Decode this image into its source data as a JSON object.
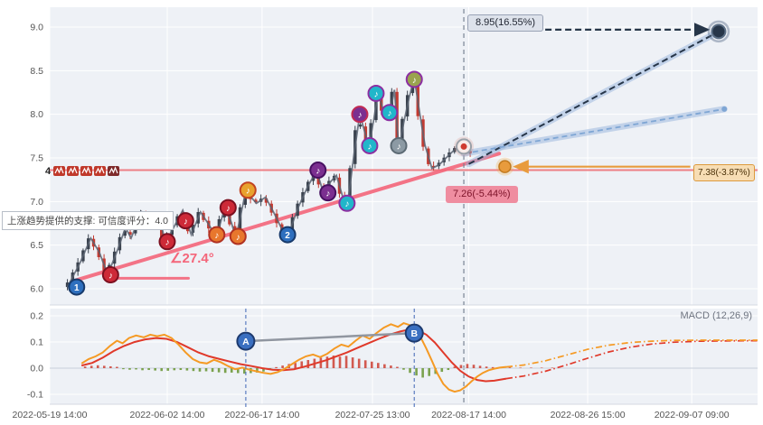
{
  "colors": {
    "panel_bg": "#eef1f6",
    "grid": "#ffffff",
    "axis_line": "#d4d9e1",
    "axis_text": "#555555",
    "candle_up": "#39414d",
    "candle_down": "#c23a31",
    "price_path": "#5a6472",
    "support_line": "#f4667a",
    "level_line": "#ed6a72",
    "projection_dark": "#273649",
    "projection_blue": "#7fa6d4",
    "glow_blue": "rgba(150,180,220,0.5)",
    "arrow_orange": "#e89b3d",
    "now_line": "#7a8494",
    "macd_dif": "#f59a24",
    "macd_dea": "#e0392a",
    "hist_pos": "#cf4a3f",
    "hist_neg": "#6f9a3c",
    "ab_line": "#9096a0",
    "ab_circle": "#3a6fc0",
    "ab_ring": "#1d3a6e"
  },
  "chart_data": {
    "type": "candlestick+macd",
    "now_f": 0.585,
    "x_axis": {
      "ticks": [
        {
          "f": 0.0,
          "label": "2022-05-19 14:00"
        },
        {
          "f": 0.166,
          "label": "2022-06-02 14:00"
        },
        {
          "f": 0.3,
          "label": "2022-06-17 14:00"
        },
        {
          "f": 0.456,
          "label": "2022-07-25 13:00"
        },
        {
          "f": 0.592,
          "label": "2022-08-17 14:00"
        },
        {
          "f": 0.76,
          "label": "2022-08-26 15:00"
        },
        {
          "f": 0.907,
          "label": "2022-09-07 09:00"
        }
      ]
    },
    "price_panel": {
      "y_ticks": [
        6.0,
        6.5,
        7.0,
        7.5,
        8.0,
        8.5,
        9.0
      ],
      "level_line": 7.36,
      "candle_count": 78,
      "candle_range": [
        0.025,
        0.594
      ],
      "price_path": [
        [
          0.025,
          6.02
        ],
        [
          0.043,
          6.3
        ],
        [
          0.058,
          6.58
        ],
        [
          0.07,
          6.42
        ],
        [
          0.082,
          6.16
        ],
        [
          0.096,
          6.45
        ],
        [
          0.107,
          6.7
        ],
        [
          0.115,
          6.58
        ],
        [
          0.13,
          6.88
        ],
        [
          0.145,
          6.7
        ],
        [
          0.155,
          6.85
        ],
        [
          0.163,
          6.52
        ],
        [
          0.175,
          6.7
        ],
        [
          0.188,
          6.9
        ],
        [
          0.2,
          6.62
        ],
        [
          0.213,
          6.88
        ],
        [
          0.226,
          6.72
        ],
        [
          0.235,
          6.58
        ],
        [
          0.248,
          6.95
        ],
        [
          0.257,
          6.75
        ],
        [
          0.263,
          6.58
        ],
        [
          0.277,
          7.12
        ],
        [
          0.292,
          6.98
        ],
        [
          0.305,
          7.05
        ],
        [
          0.318,
          6.85
        ],
        [
          0.33,
          6.65
        ],
        [
          0.337,
          6.62
        ],
        [
          0.352,
          6.95
        ],
        [
          0.365,
          7.18
        ],
        [
          0.377,
          7.35
        ],
        [
          0.386,
          7.12
        ],
        [
          0.396,
          7.22
        ],
        [
          0.405,
          7.3
        ],
        [
          0.414,
          7.05
        ],
        [
          0.421,
          6.98
        ],
        [
          0.43,
          7.55
        ],
        [
          0.438,
          8.0
        ],
        [
          0.445,
          7.8
        ],
        [
          0.451,
          7.62
        ],
        [
          0.458,
          7.95
        ],
        [
          0.464,
          8.24
        ],
        [
          0.471,
          8.05
        ],
        [
          0.477,
          7.98
        ],
        [
          0.481,
          8.02
        ],
        [
          0.487,
          8.28
        ],
        [
          0.492,
          7.75
        ],
        [
          0.494,
          7.62
        ],
        [
          0.5,
          7.9
        ],
        [
          0.508,
          8.2
        ],
        [
          0.515,
          8.42
        ],
        [
          0.522,
          8.05
        ],
        [
          0.53,
          7.65
        ],
        [
          0.54,
          7.38
        ],
        [
          0.55,
          7.42
        ],
        [
          0.56,
          7.5
        ],
        [
          0.57,
          7.58
        ],
        [
          0.578,
          7.63
        ],
        [
          0.585,
          7.63
        ],
        [
          0.594,
          7.55
        ]
      ],
      "support_line": {
        "x1": 0.038,
        "y1": 6.1,
        "x2": 0.635,
        "y2": 7.55
      },
      "angle_guide": {
        "text": "∠27.4°",
        "x1": 0.082,
        "x2": 0.196,
        "y": 6.12,
        "label_x": 0.17,
        "label_y": 6.3
      },
      "marker_glyph": "♪",
      "markers": [
        {
          "x": 0.038,
          "p": 6.02,
          "label": "1",
          "fill": "#2e6fbe",
          "ring": "#173a6b"
        },
        {
          "x": 0.086,
          "p": 6.16,
          "fill": "#cd2a38",
          "ring": "#7c1020"
        },
        {
          "x": 0.166,
          "p": 6.54,
          "fill": "#cd2a38",
          "ring": "#7c1020"
        },
        {
          "x": 0.192,
          "p": 6.78,
          "fill": "#cd2a38",
          "ring": "#7c1020"
        },
        {
          "x": 0.236,
          "p": 6.62,
          "fill": "#e8772d",
          "ring": "#b03222"
        },
        {
          "x": 0.252,
          "p": 6.93,
          "fill": "#cd2a38",
          "ring": "#7c1020"
        },
        {
          "x": 0.266,
          "p": 6.6,
          "fill": "#e8772d",
          "ring": "#b03222"
        },
        {
          "x": 0.28,
          "p": 7.13,
          "fill": "#e8a22d",
          "ring": "#c24320"
        },
        {
          "x": 0.336,
          "p": 6.62,
          "label": "2",
          "fill": "#2e6fbe",
          "ring": "#173a6b"
        },
        {
          "x": 0.379,
          "p": 7.36,
          "fill": "#7b2f90",
          "ring": "#471061"
        },
        {
          "x": 0.393,
          "p": 7.1,
          "fill": "#7b2f90",
          "ring": "#471061"
        },
        {
          "x": 0.42,
          "p": 6.98,
          "fill": "#21b6ca",
          "ring": "#8c2fa1"
        },
        {
          "x": 0.438,
          "p": 8.0,
          "fill": "#7b2f90",
          "ring": "#c22a52"
        },
        {
          "x": 0.452,
          "p": 7.64,
          "fill": "#21b6ca",
          "ring": "#8c2fa1"
        },
        {
          "x": 0.461,
          "p": 8.24,
          "fill": "#21b6ca",
          "ring": "#8c2fa1"
        },
        {
          "x": 0.48,
          "p": 8.02,
          "fill": "#21b6ca",
          "ring": "#8c2fa1"
        },
        {
          "x": 0.493,
          "p": 7.64,
          "fill": "#8c9aa4",
          "ring": "#5c6a74"
        },
        {
          "x": 0.515,
          "p": 8.4,
          "fill": "#9aa34e",
          "ring": "#8c2fa1"
        }
      ],
      "projections": {
        "upper": {
          "x1": 0.592,
          "y1": 7.43,
          "x2": 0.941,
          "y2": 8.93
        },
        "lower": {
          "x1": 0.585,
          "y1": 7.55,
          "x2": 0.953,
          "y2": 8.06
        },
        "target_arrow": {
          "x1": 0.7,
          "x2": 0.93,
          "price": 8.97
        },
        "orange_arrow": {
          "x1": 0.905,
          "x2": 0.657,
          "price": 7.4
        }
      },
      "points": {
        "current": {
          "x": 0.585,
          "p": 7.63
        },
        "orange": {
          "x": 0.643,
          "p": 7.4
        },
        "end_up": {
          "x": 0.945,
          "p": 8.95
        },
        "end_mid": {
          "x": 0.953,
          "p": 8.06
        }
      },
      "annotations": {
        "up": {
          "text": "8.95(16.55%)"
        },
        "mid": {
          "text": "7.38(-3.87%)"
        },
        "down": {
          "text": "7.26(-5.44%)"
        }
      },
      "tooltip": "上涨趋势提供的支撑: 可信度评分：4.0",
      "left_signals": {
        "count_label": "4",
        "icon_colors": [
          "#c0392b",
          "#c0392b",
          "#c0392b",
          "#c0392b",
          "#7e2a2a"
        ]
      }
    },
    "macd_panel": {
      "label": "MACD (12,26,9)",
      "y_ticks": [
        0.2,
        0.1,
        0.0,
        -0.1
      ],
      "dif": [
        [
          0.045,
          0.018
        ],
        [
          0.055,
          0.035
        ],
        [
          0.065,
          0.045
        ],
        [
          0.075,
          0.06
        ],
        [
          0.085,
          0.085
        ],
        [
          0.095,
          0.105
        ],
        [
          0.103,
          0.095
        ],
        [
          0.112,
          0.115
        ],
        [
          0.122,
          0.125
        ],
        [
          0.133,
          0.118
        ],
        [
          0.142,
          0.128
        ],
        [
          0.152,
          0.122
        ],
        [
          0.162,
          0.128
        ],
        [
          0.172,
          0.115
        ],
        [
          0.182,
          0.09
        ],
        [
          0.192,
          0.06
        ],
        [
          0.202,
          0.035
        ],
        [
          0.212,
          0.022
        ],
        [
          0.222,
          0.018
        ],
        [
          0.232,
          0.032
        ],
        [
          0.242,
          0.022
        ],
        [
          0.252,
          0.008
        ],
        [
          0.262,
          -0.004
        ],
        [
          0.272,
          0.002
        ],
        [
          0.282,
          -0.006
        ],
        [
          0.292,
          -0.012
        ],
        [
          0.302,
          -0.018
        ],
        [
          0.312,
          -0.022
        ],
        [
          0.322,
          -0.015
        ],
        [
          0.332,
          -0.002
        ],
        [
          0.342,
          0.015
        ],
        [
          0.352,
          0.032
        ],
        [
          0.362,
          0.045
        ],
        [
          0.372,
          0.052
        ],
        [
          0.382,
          0.042
        ],
        [
          0.392,
          0.055
        ],
        [
          0.402,
          0.075
        ],
        [
          0.412,
          0.09
        ],
        [
          0.422,
          0.082
        ],
        [
          0.432,
          0.105
        ],
        [
          0.442,
          0.125
        ],
        [
          0.452,
          0.112
        ],
        [
          0.462,
          0.135
        ],
        [
          0.472,
          0.155
        ],
        [
          0.482,
          0.168
        ],
        [
          0.492,
          0.158
        ],
        [
          0.5,
          0.172
        ],
        [
          0.508,
          0.165
        ],
        [
          0.516,
          0.148
        ],
        [
          0.524,
          0.118
        ],
        [
          0.532,
          0.075
        ],
        [
          0.54,
          0.028
        ],
        [
          0.548,
          -0.022
        ],
        [
          0.556,
          -0.06
        ],
        [
          0.564,
          -0.082
        ],
        [
          0.572,
          -0.09
        ],
        [
          0.58,
          -0.085
        ],
        [
          0.588,
          -0.07
        ],
        [
          0.596,
          -0.05
        ],
        [
          0.604,
          -0.032
        ],
        [
          0.612,
          -0.018
        ],
        [
          0.62,
          -0.008
        ],
        [
          0.628,
          -0.002
        ],
        [
          0.636,
          0.002
        ],
        [
          0.645,
          0.005
        ]
      ],
      "dea": [
        [
          0.045,
          0.01
        ],
        [
          0.06,
          0.02
        ],
        [
          0.075,
          0.04
        ],
        [
          0.09,
          0.065
        ],
        [
          0.105,
          0.085
        ],
        [
          0.12,
          0.1
        ],
        [
          0.135,
          0.11
        ],
        [
          0.15,
          0.115
        ],
        [
          0.165,
          0.112
        ],
        [
          0.18,
          0.1
        ],
        [
          0.195,
          0.08
        ],
        [
          0.21,
          0.06
        ],
        [
          0.225,
          0.045
        ],
        [
          0.24,
          0.035
        ],
        [
          0.255,
          0.025
        ],
        [
          0.27,
          0.015
        ],
        [
          0.285,
          0.008
        ],
        [
          0.3,
          0.0
        ],
        [
          0.315,
          -0.006
        ],
        [
          0.33,
          -0.008
        ],
        [
          0.345,
          -0.004
        ],
        [
          0.36,
          0.006
        ],
        [
          0.375,
          0.018
        ],
        [
          0.39,
          0.03
        ],
        [
          0.405,
          0.045
        ],
        [
          0.42,
          0.06
        ],
        [
          0.435,
          0.078
        ],
        [
          0.45,
          0.095
        ],
        [
          0.465,
          0.112
        ],
        [
          0.48,
          0.128
        ],
        [
          0.495,
          0.14
        ],
        [
          0.508,
          0.148
        ],
        [
          0.52,
          0.145
        ],
        [
          0.532,
          0.128
        ],
        [
          0.544,
          0.098
        ],
        [
          0.556,
          0.06
        ],
        [
          0.568,
          0.022
        ],
        [
          0.58,
          -0.01
        ],
        [
          0.592,
          -0.032
        ],
        [
          0.604,
          -0.045
        ],
        [
          0.616,
          -0.05
        ],
        [
          0.628,
          -0.048
        ],
        [
          0.645,
          -0.04
        ]
      ],
      "forecast_dif": [
        [
          0.645,
          0.005
        ],
        [
          0.67,
          0.012
        ],
        [
          0.7,
          0.028
        ],
        [
          0.73,
          0.05
        ],
        [
          0.76,
          0.072
        ],
        [
          0.79,
          0.088
        ],
        [
          0.82,
          0.098
        ],
        [
          0.85,
          0.103
        ],
        [
          0.88,
          0.106
        ],
        [
          0.92,
          0.107
        ],
        [
          0.96,
          0.107
        ],
        [
          1.0,
          0.107
        ]
      ],
      "forecast_dea": [
        [
          0.645,
          -0.04
        ],
        [
          0.67,
          -0.03
        ],
        [
          0.7,
          -0.012
        ],
        [
          0.73,
          0.012
        ],
        [
          0.76,
          0.038
        ],
        [
          0.79,
          0.062
        ],
        [
          0.82,
          0.08
        ],
        [
          0.85,
          0.092
        ],
        [
          0.88,
          0.099
        ],
        [
          0.92,
          0.103
        ],
        [
          0.96,
          0.104
        ],
        [
          1.0,
          0.105
        ]
      ],
      "histogram": [
        [
          0.05,
          0.006
        ],
        [
          0.059,
          0.009
        ],
        [
          0.068,
          0.011
        ],
        [
          0.077,
          0.009
        ],
        [
          0.086,
          0.007
        ],
        [
          0.095,
          0.005
        ],
        [
          0.104,
          -0.004
        ],
        [
          0.113,
          -0.006
        ],
        [
          0.122,
          -0.005
        ],
        [
          0.131,
          -0.008
        ],
        [
          0.14,
          -0.007
        ],
        [
          0.149,
          -0.009
        ],
        [
          0.158,
          -0.011
        ],
        [
          0.167,
          -0.01
        ],
        [
          0.176,
          -0.008
        ],
        [
          0.185,
          -0.007
        ],
        [
          0.194,
          -0.009
        ],
        [
          0.203,
          -0.011
        ],
        [
          0.212,
          -0.013
        ],
        [
          0.221,
          -0.012
        ],
        [
          0.23,
          -0.014
        ],
        [
          0.239,
          -0.016
        ],
        [
          0.248,
          -0.018
        ],
        [
          0.257,
          -0.017
        ],
        [
          0.266,
          -0.019
        ],
        [
          0.275,
          -0.021
        ],
        [
          0.284,
          -0.019
        ],
        [
          0.293,
          -0.017
        ],
        [
          0.302,
          -0.013
        ],
        [
          0.311,
          -0.007
        ],
        [
          0.32,
          0.004
        ],
        [
          0.329,
          0.01
        ],
        [
          0.338,
          0.016
        ],
        [
          0.347,
          0.02
        ],
        [
          0.356,
          0.026
        ],
        [
          0.365,
          0.031
        ],
        [
          0.374,
          0.036
        ],
        [
          0.383,
          0.04
        ],
        [
          0.392,
          0.044
        ],
        [
          0.401,
          0.048
        ],
        [
          0.41,
          0.044
        ],
        [
          0.419,
          0.047
        ],
        [
          0.428,
          0.041
        ],
        [
          0.437,
          0.036
        ],
        [
          0.446,
          0.03
        ],
        [
          0.455,
          0.025
        ],
        [
          0.464,
          0.02
        ],
        [
          0.473,
          0.015
        ],
        [
          0.482,
          0.01
        ],
        [
          0.491,
          0.005
        ],
        [
          0.5,
          -0.006
        ],
        [
          0.509,
          -0.018
        ],
        [
          0.518,
          -0.028
        ],
        [
          0.527,
          -0.036
        ],
        [
          0.536,
          -0.03
        ],
        [
          0.545,
          -0.022
        ],
        [
          0.554,
          -0.014
        ],
        [
          0.563,
          -0.007
        ],
        [
          0.572,
          0.006
        ],
        [
          0.581,
          0.012
        ],
        [
          0.59,
          0.016
        ],
        [
          0.599,
          0.013
        ],
        [
          0.608,
          0.009
        ],
        [
          0.617,
          0.006
        ],
        [
          0.626,
          0.004
        ],
        [
          0.635,
          0.003
        ],
        [
          0.65,
          0.003
        ],
        [
          0.665,
          0.002
        ],
        [
          0.68,
          0.002
        ],
        [
          0.695,
          0.002
        ],
        [
          0.71,
          0.002
        ]
      ],
      "ab_line": {
        "a": {
          "f": 0.277,
          "v": 0.103,
          "label": "A"
        },
        "b": {
          "f": 0.515,
          "v": 0.134,
          "label": "B"
        }
      },
      "dashed_verticals": [
        0.277,
        0.515
      ]
    }
  }
}
